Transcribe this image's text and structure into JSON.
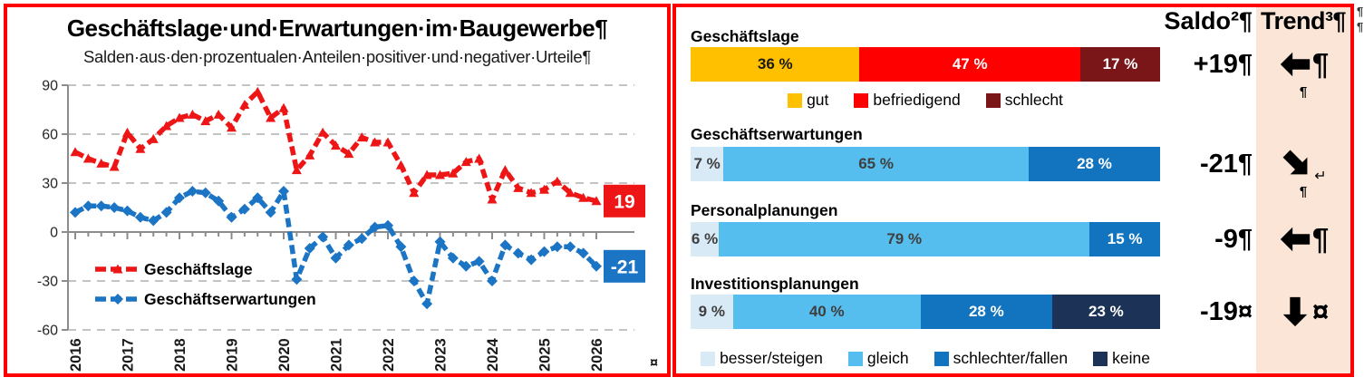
{
  "left_panel": {
    "title": "Geschäftslage·und·Erwartungen·im·Baugewerbe¶",
    "subtitle": "Salden·aus·den·prozentualen·Anteilen·positiver·und·negativer·Urteile¶",
    "cell_end_marker": "¤"
  },
  "right_panel": {
    "saldo_header": "Saldo²¶",
    "trend_header": "Trend³¶",
    "sliver_marks": "¶¶"
  },
  "chart_data": [
    {
      "type": "line",
      "title": "Geschäftslage und Erwartungen im Baugewerbe",
      "subtitle": "Salden aus den prozentualen Anteilen positiver und negativer Urteile",
      "x_start": 2016,
      "x_step": 0.25,
      "x_tick_labels": [
        "2016",
        "2017",
        "2018",
        "2019",
        "2020",
        "2021",
        "2022",
        "2023",
        "2024",
        "2025",
        "2026"
      ],
      "ylim": [
        -60,
        90
      ],
      "yticks": [
        90,
        60,
        30,
        0,
        -30,
        -60
      ],
      "grid": "dashed-horizontal",
      "legend_position": "inside-left",
      "series": [
        {
          "name": "Geschäftslage",
          "color": "#ED1515",
          "marker": "triangle",
          "end_label": "19",
          "values": [
            49,
            45,
            42,
            40,
            61,
            51,
            57,
            65,
            70,
            72,
            68,
            72,
            64,
            78,
            86,
            70,
            76,
            38,
            47,
            61,
            53,
            48,
            58,
            55,
            55,
            41,
            24,
            35,
            35,
            36,
            43,
            45,
            20,
            38,
            27,
            24,
            26,
            31,
            24,
            21,
            19
          ]
        },
        {
          "name": "Geschäftserwartungen",
          "color": "#1B74C4",
          "marker": "diamond",
          "end_label": "-21",
          "values": [
            12,
            16,
            16,
            15,
            13,
            9,
            7,
            12,
            21,
            25,
            24,
            19,
            9,
            14,
            21,
            12,
            25,
            -29,
            -10,
            -3,
            -16,
            -8,
            -4,
            3,
            4,
            -9,
            -30,
            -44,
            -6,
            -16,
            -21,
            -18,
            -30,
            -8,
            -13,
            -17,
            -12,
            -9,
            -9,
            -13,
            -21
          ]
        }
      ]
    },
    {
      "type": "bar",
      "orientation": "horizontal-stacked",
      "palette": {
        "gold": {
          "fill": "#FFC000",
          "text": "#1a1a1a"
        },
        "red": {
          "fill": "#FF0000",
          "text": "#ffffff"
        },
        "darkred": {
          "fill": "#7B1618",
          "text": "#ffffff"
        },
        "lightblue": {
          "fill": "#D9EAF7",
          "text": "#3f3f3f"
        },
        "skyblue": {
          "fill": "#56BEEE",
          "text": "#3f3f3f"
        },
        "midblue": {
          "fill": "#1273BE",
          "text": "#ffffff"
        },
        "navy": {
          "fill": "#1C3357",
          "text": "#ffffff"
        }
      },
      "rows": [
        {
          "header": "Geschäftslage",
          "segments": [
            {
              "label": "36 %",
              "value": 36,
              "color_key": "gold"
            },
            {
              "label": "47 %",
              "value": 47,
              "color_key": "red"
            },
            {
              "label": "17 %",
              "value": 17,
              "color_key": "darkred"
            }
          ],
          "saldo": "+19¶",
          "trend": {
            "direction": "left",
            "after": "¶",
            "after_style": "big",
            "below": "¶"
          }
        },
        {
          "header": "Geschäftserwartungen",
          "segments": [
            {
              "label": "7 %",
              "value": 7,
              "color_key": "lightblue"
            },
            {
              "label": "65 %",
              "value": 65,
              "color_key": "skyblue"
            },
            {
              "label": "28 %",
              "value": 28,
              "color_key": "midblue"
            }
          ],
          "saldo": "-21¶",
          "trend": {
            "direction": "down-right",
            "after": "↵",
            "after_style": "small",
            "below": "¶"
          }
        },
        {
          "header": "Personalplanungen",
          "segments": [
            {
              "label": "6 %",
              "value": 6,
              "color_key": "lightblue"
            },
            {
              "label": "79 %",
              "value": 79,
              "color_key": "skyblue"
            },
            {
              "label": "15 %",
              "value": 15,
              "color_key": "midblue"
            }
          ],
          "saldo": "-9¶",
          "trend": {
            "direction": "left",
            "after": "¶",
            "after_style": "big",
            "below": ""
          }
        },
        {
          "header": "Investitionsplanungen",
          "segments": [
            {
              "label": "9 %",
              "value": 9,
              "color_key": "lightblue"
            },
            {
              "label": "40 %",
              "value": 40,
              "color_key": "skyblue"
            },
            {
              "label": "28 %",
              "value": 28,
              "color_key": "midblue"
            },
            {
              "label": "23 %",
              "value": 23,
              "color_key": "navy"
            }
          ],
          "saldo": "-19¤",
          "trend": {
            "direction": "down",
            "after": "¤",
            "after_style": "big",
            "below": ""
          }
        }
      ],
      "legend_top": [
        {
          "label": "gut",
          "color_key": "gold"
        },
        {
          "label": "befriedigend",
          "color_key": "red"
        },
        {
          "label": "schlecht",
          "color_key": "darkred"
        }
      ],
      "legend_bottom": [
        {
          "label": "besser/steigen",
          "color_key": "lightblue"
        },
        {
          "label": "gleich",
          "color_key": "skyblue"
        },
        {
          "label": "schlechter/fallen",
          "color_key": "midblue"
        },
        {
          "label": "keine",
          "color_key": "navy"
        }
      ]
    }
  ]
}
